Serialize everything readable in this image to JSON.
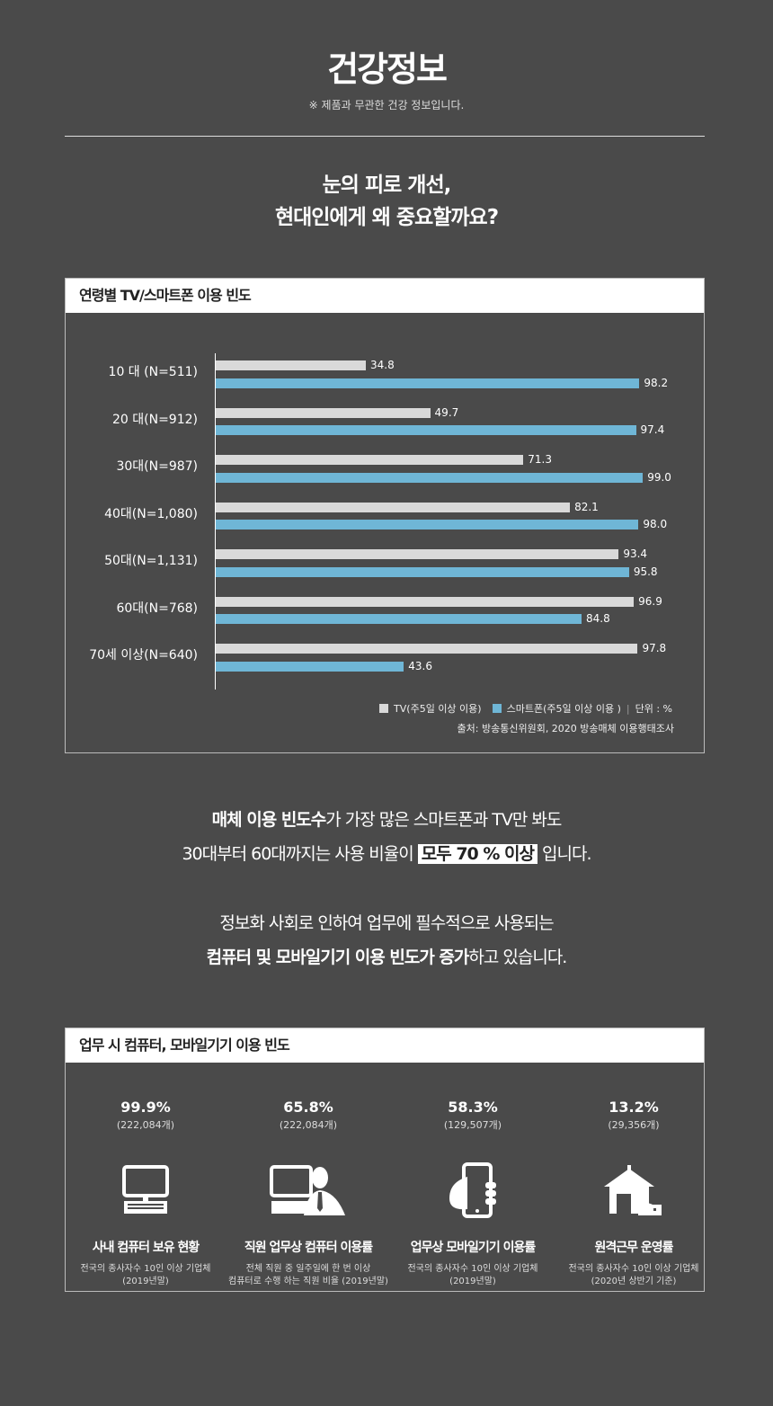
{
  "header": {
    "title": "건강정보",
    "note": "※ 제품과 무관한 건강 정보입니다."
  },
  "headline": {
    "line1": "눈의 피로 개선,",
    "line2": "현대인에게 왜 중요할까요?"
  },
  "chart_box": {
    "title": "연령별 TV/스마트폰 이용 빈도",
    "unit": "단위 : %",
    "source": "출처: 방송통신위원회, 2020 방송매체 이용행태조사"
  },
  "chart_data": {
    "type": "bar",
    "orientation": "horizontal",
    "title": "연령별 TV/스마트폰 이용 빈도",
    "categories": [
      "10 대 (N=511)",
      "20 대(N=912)",
      "30대(N=987)",
      "40대(N=1,080)",
      "50대(N=1,131)",
      "60대(N=768)",
      "70세 이상(N=640)"
    ],
    "series": [
      {
        "name": "TV(주5일 이상 이용)",
        "color": "#d9d9d9",
        "values": [
          34.8,
          49.7,
          71.3,
          82.1,
          93.4,
          96.9,
          97.8
        ],
        "labels": [
          "34.8",
          "49.7",
          "71.3",
          "82.1",
          "93.4",
          "96.9",
          "97.8"
        ]
      },
      {
        "name": "스마트폰(주5일 이상 이용 )",
        "color": "#6fb6d6",
        "values": [
          98.2,
          97.4,
          99.0,
          98.0,
          95.8,
          84.8,
          43.6
        ],
        "labels": [
          "98.2",
          "97.4",
          "99.0",
          "98.0",
          "95.8",
          "84.8",
          "43.6"
        ]
      }
    ],
    "xlim": [
      0,
      100
    ],
    "unit": "%",
    "legend": "bottom-right"
  },
  "para1": {
    "bold1": "매체 이용 빈도수",
    "text1": "가 가장 많은 스마트폰과 TV만 봐도",
    "text2": "30대부터 60대까지는 사용 비율이 ",
    "highlight": "모두 70 % 이상",
    "text3": " 입니다."
  },
  "para2": {
    "line1": "정보화 사회로 인하여 업무에 필수적으로 사용되는",
    "bold1": "컴퓨터 및 모바일기기 이용 빈도가 증가",
    "text1": "하고 있습니다."
  },
  "stats_box": {
    "title": "업무 시 컴퓨터, 모바일기기 이용 빈도",
    "items": [
      {
        "pct": "99.9%",
        "count": "(222,084개)",
        "label": "사내 컴퓨터 보유 현황",
        "desc": "전국의 종사자수 10인 이상 기업체\n(2019년말)",
        "icon": "computer-icon"
      },
      {
        "pct": "65.8%",
        "count": "(222,084개)",
        "label": "직원 업무상 컴퓨터 이용률",
        "desc": "전체 직원 중 일주일에 한 번 이상\n컴퓨터로 수행 하는 직원 비율 (2019년말)",
        "icon": "worker-computer-icon"
      },
      {
        "pct": "58.3%",
        "count": "(129,507개)",
        "label": "업무상 모바일기기 이용률",
        "desc": "전국의 종사자수 10인 이상 기업체\n(2019년말)",
        "icon": "hand-phone-icon"
      },
      {
        "pct": "13.2%",
        "count": "(29,356개)",
        "label": "원격근무 운영률",
        "desc": "전국의 종사자수 10인 이상 기업체\n(2020년 상반기 기준)",
        "icon": "home-office-icon"
      }
    ]
  }
}
